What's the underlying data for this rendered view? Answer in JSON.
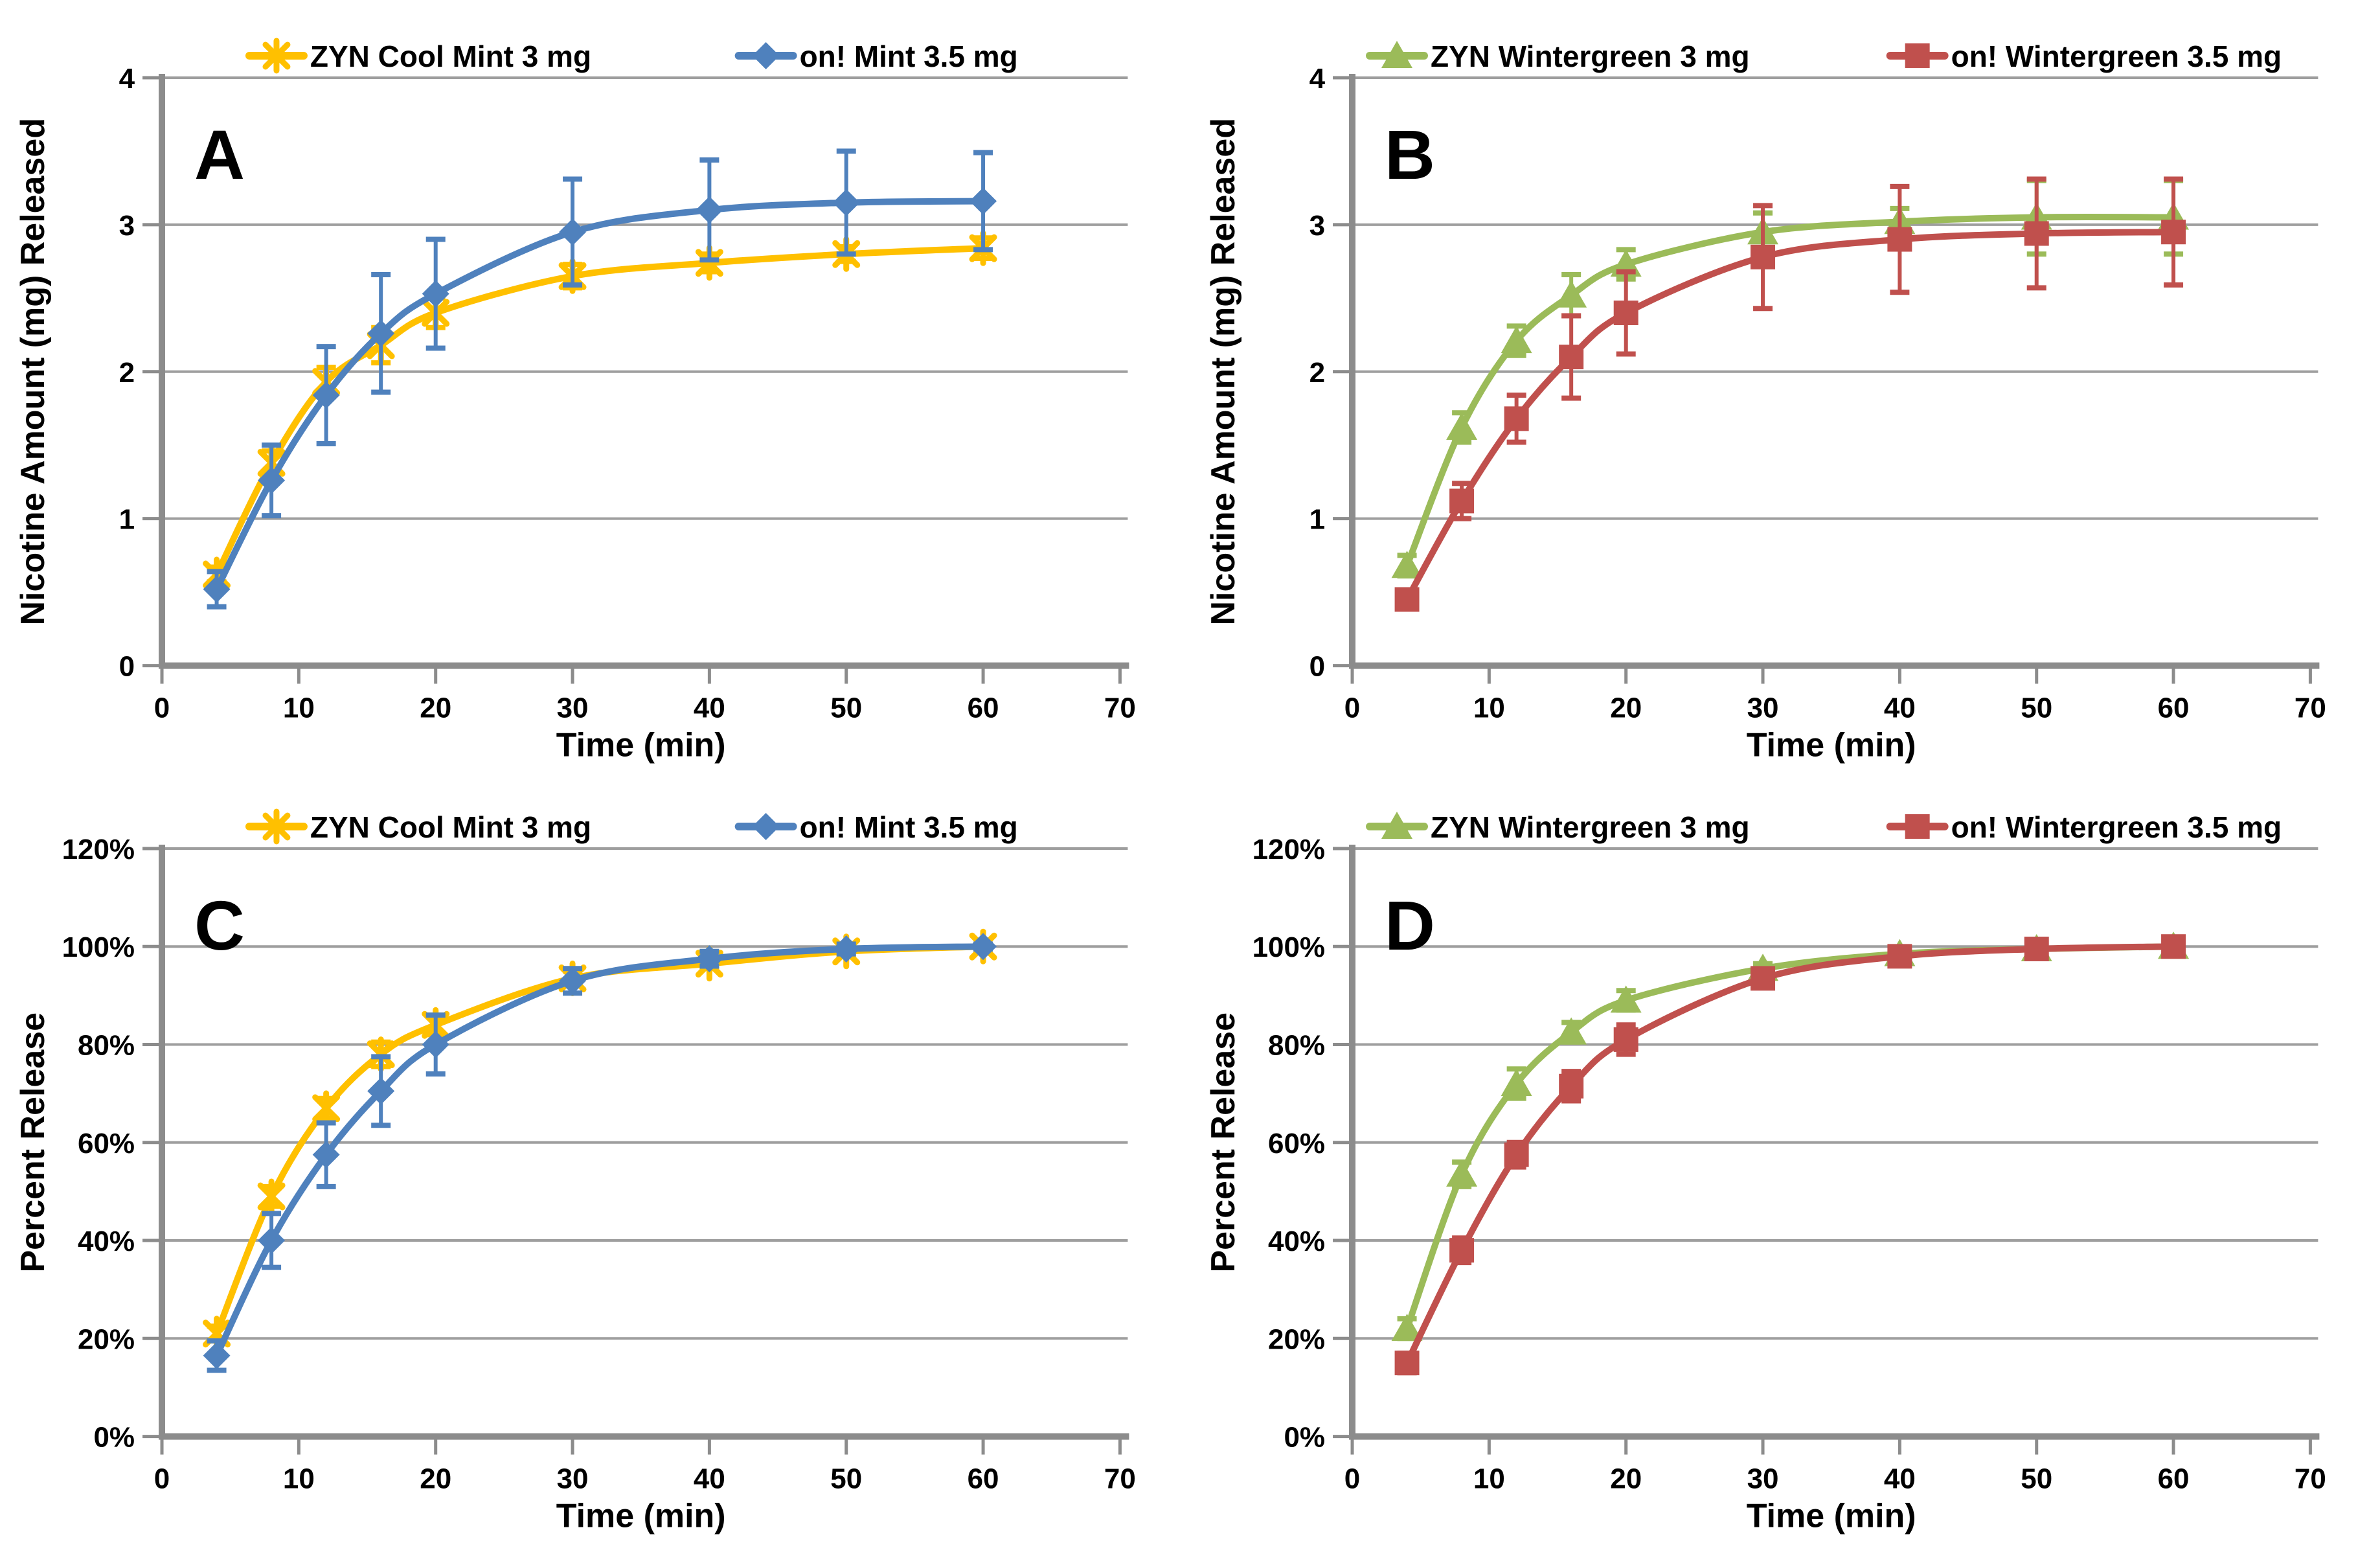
{
  "figure": {
    "background": "#ffffff",
    "panel_letters": [
      "A",
      "B",
      "C",
      "D"
    ]
  },
  "styles": {
    "axis_color": "#8C8C8C",
    "grid_color": "#9E9E9E",
    "panel_label_color": "#3F3F3F",
    "accent_yellow": "#FFC000",
    "accent_blue": "#4F81BD",
    "accent_green": "#9BBB59",
    "accent_red": "#C0504D"
  },
  "chart_data": [
    {
      "panel_label": "A",
      "type": "line",
      "xlabel": "Time (min)",
      "ylabel": "Nicotine Amount (mg) Released",
      "xlim": [
        0,
        70
      ],
      "ylim": [
        0,
        4
      ],
      "xticks": [
        0,
        10,
        20,
        30,
        40,
        50,
        60,
        70
      ],
      "yticks": [
        0,
        1,
        2,
        3,
        4
      ],
      "ytick_format": "number",
      "grid": "horizontal",
      "legend_position": "top",
      "x": [
        4,
        8,
        12,
        16,
        20,
        30,
        40,
        50,
        60
      ],
      "series": [
        {
          "name": "ZYN Cool Mint 3 mg",
          "color": "#FFC000",
          "marker": "star",
          "values": [
            0.62,
            1.38,
            1.93,
            2.18,
            2.4,
            2.65,
            2.74,
            2.8,
            2.84
          ],
          "errors": [
            0.05,
            0.08,
            0.1,
            0.12,
            0.1,
            0.08,
            0.06,
            0.05,
            0.07
          ]
        },
        {
          "name": "on! Mint 3.5 mg",
          "color": "#4F81BD",
          "marker": "diamond",
          "values": [
            0.52,
            1.26,
            1.84,
            2.26,
            2.53,
            2.95,
            3.1,
            3.15,
            3.16
          ],
          "errors": [
            0.12,
            0.24,
            0.33,
            0.4,
            0.37,
            0.36,
            0.34,
            0.35,
            0.33
          ]
        }
      ]
    },
    {
      "panel_label": "B",
      "type": "line",
      "xlabel": "Time (min)",
      "ylabel": "Nicotine Amount (mg) Released",
      "xlim": [
        0,
        70
      ],
      "ylim": [
        0,
        4
      ],
      "xticks": [
        0,
        10,
        20,
        30,
        40,
        50,
        60,
        70
      ],
      "yticks": [
        0,
        1,
        2,
        3,
        4
      ],
      "ytick_format": "number",
      "grid": "horizontal",
      "legend_position": "top",
      "x": [
        4,
        8,
        12,
        16,
        20,
        30,
        40,
        50,
        60
      ],
      "series": [
        {
          "name": "ZYN Wintergreen 3 mg",
          "color": "#9BBB59",
          "marker": "triangle",
          "values": [
            0.68,
            1.62,
            2.21,
            2.52,
            2.73,
            2.95,
            3.02,
            3.05,
            3.05
          ],
          "errors": [
            0.07,
            0.1,
            0.1,
            0.14,
            0.1,
            0.13,
            0.09,
            0.25,
            0.25
          ]
        },
        {
          "name": "on! Wintergreen 3.5 mg",
          "color": "#C0504D",
          "marker": "square",
          "values": [
            0.45,
            1.12,
            1.68,
            2.1,
            2.4,
            2.78,
            2.9,
            2.94,
            2.95
          ],
          "errors": [
            0.06,
            0.12,
            0.16,
            0.28,
            0.28,
            0.35,
            0.36,
            0.37,
            0.36
          ]
        }
      ]
    },
    {
      "panel_label": "C",
      "type": "line",
      "xlabel": "Time (min)",
      "ylabel": "Percent Release",
      "xlim": [
        0,
        70
      ],
      "ylim": [
        0,
        120
      ],
      "xticks": [
        0,
        10,
        20,
        30,
        40,
        50,
        60,
        70
      ],
      "yticks": [
        0,
        20,
        40,
        60,
        80,
        100,
        120
      ],
      "ytick_format": "percent",
      "grid": "horizontal",
      "legend_position": "top",
      "x": [
        4,
        8,
        12,
        16,
        20,
        30,
        40,
        50,
        60
      ],
      "series": [
        {
          "name": "ZYN Cool Mint 3 mg",
          "color": "#FFC000",
          "marker": "star",
          "values": [
            21,
            49,
            67,
            78,
            84,
            93.5,
            96.5,
            99,
            100
          ],
          "errors": [
            1.5,
            2,
            2,
            2.5,
            2,
            1.5,
            1,
            1,
            0.5
          ]
        },
        {
          "name": "on! Mint 3.5 mg",
          "color": "#4F81BD",
          "marker": "diamond",
          "values": [
            16.5,
            40,
            57.5,
            70.5,
            80,
            93,
            97.5,
            99.5,
            100
          ],
          "errors": [
            3,
            5.5,
            6.5,
            7,
            6,
            2.5,
            1.5,
            1,
            0.5
          ]
        }
      ]
    },
    {
      "panel_label": "D",
      "type": "line",
      "xlabel": "Time (min)",
      "ylabel": "Percent Release",
      "xlim": [
        0,
        70
      ],
      "ylim": [
        0,
        120
      ],
      "xticks": [
        0,
        10,
        20,
        30,
        40,
        50,
        60,
        70
      ],
      "yticks": [
        0,
        20,
        40,
        60,
        80,
        100,
        120
      ],
      "ytick_format": "percent",
      "grid": "horizontal",
      "legend_position": "top",
      "x": [
        4,
        8,
        12,
        16,
        20,
        30,
        40,
        50,
        60
      ],
      "series": [
        {
          "name": "ZYN Wintergreen 3 mg",
          "color": "#9BBB59",
          "marker": "triangle",
          "values": [
            22,
            53.5,
            72,
            82.5,
            89,
            95.5,
            98.5,
            99.5,
            100
          ],
          "errors": [
            2,
            2.5,
            3,
            2,
            2,
            1,
            0.8,
            0.5,
            0.3
          ]
        },
        {
          "name": "on! Wintergreen 3.5 mg",
          "color": "#C0504D",
          "marker": "square",
          "values": [
            15,
            38,
            57.5,
            71.5,
            81,
            93.5,
            98,
            99.5,
            100
          ],
          "errors": [
            2,
            2.5,
            2.5,
            3,
            3,
            1.5,
            0.8,
            0.5,
            0.3
          ]
        }
      ]
    }
  ]
}
